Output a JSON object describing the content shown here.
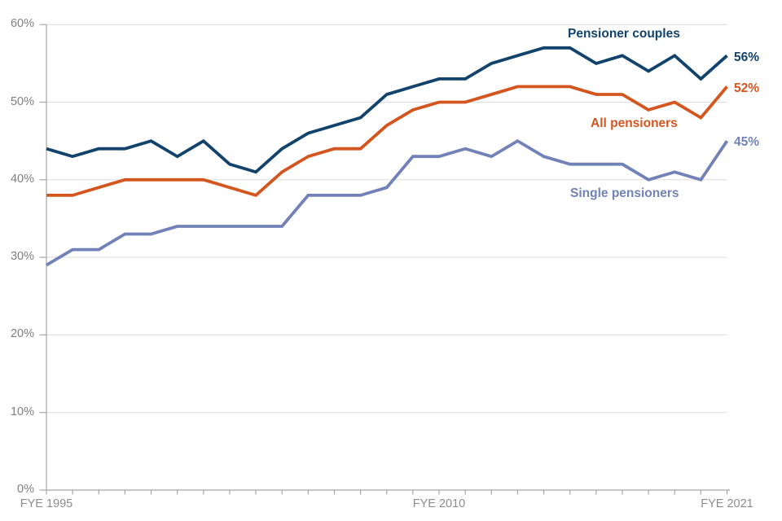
{
  "axes": {
    "axis_color": "#a6a6a6",
    "grid_color": "#dcdcdc",
    "tick_label_color": "#7f7f7f",
    "yticks": [
      "0%",
      "10%",
      "20%",
      "30%",
      "40%",
      "50%",
      "60%"
    ],
    "xticks": [
      {
        "label": "FYE 1995",
        "year_index": 0
      },
      {
        "label": "FYE 2010",
        "year_index": 15
      },
      {
        "label": "FYE 2021",
        "year_index": 26
      }
    ]
  },
  "chart_data": {
    "type": "line",
    "title": "",
    "xlabel": "",
    "ylabel": "",
    "ylim": [
      0,
      60
    ],
    "ytick_step": 10,
    "grid": true,
    "legend_position": "inline-annotations",
    "categories": [
      "FYE 1995",
      "FYE 1996",
      "FYE 1997",
      "FYE 1998",
      "FYE 1999",
      "FYE 2000",
      "FYE 2001",
      "FYE 2002",
      "FYE 2003",
      "FYE 2004",
      "FYE 2005",
      "FYE 2006",
      "FYE 2007",
      "FYE 2008",
      "FYE 2009",
      "FYE 2010",
      "FYE 2011",
      "FYE 2012",
      "FYE 2013",
      "FYE 2014",
      "FYE 2015",
      "FYE 2016",
      "FYE 2017",
      "FYE 2018",
      "FYE 2019",
      "FYE 2020",
      "FYE 2021"
    ],
    "series": [
      {
        "name": "Pensioner couples",
        "color": "#12436D",
        "end_label": "56%",
        "values": [
          44,
          43,
          44,
          44,
          45,
          43,
          45,
          42,
          41,
          44,
          46,
          47,
          48,
          51,
          52,
          53,
          53,
          55,
          56,
          57,
          57,
          55,
          56,
          54,
          56,
          53,
          56
        ]
      },
      {
        "name": "All pensioners",
        "color": "#D4551E",
        "end_label": "52%",
        "values": [
          38,
          38,
          39,
          40,
          40,
          40,
          40,
          39,
          38,
          41,
          43,
          44,
          44,
          47,
          49,
          50,
          50,
          51,
          52,
          52,
          52,
          51,
          51,
          49,
          50,
          48,
          52
        ]
      },
      {
        "name": "Single pensioners",
        "color": "#7282B8",
        "end_label": "45%",
        "values": [
          29,
          31,
          31,
          33,
          33,
          34,
          34,
          34,
          34,
          34,
          38,
          38,
          38,
          39,
          43,
          43,
          44,
          43,
          45,
          43,
          42,
          42,
          42,
          40,
          41,
          40,
          45
        ]
      }
    ]
  }
}
